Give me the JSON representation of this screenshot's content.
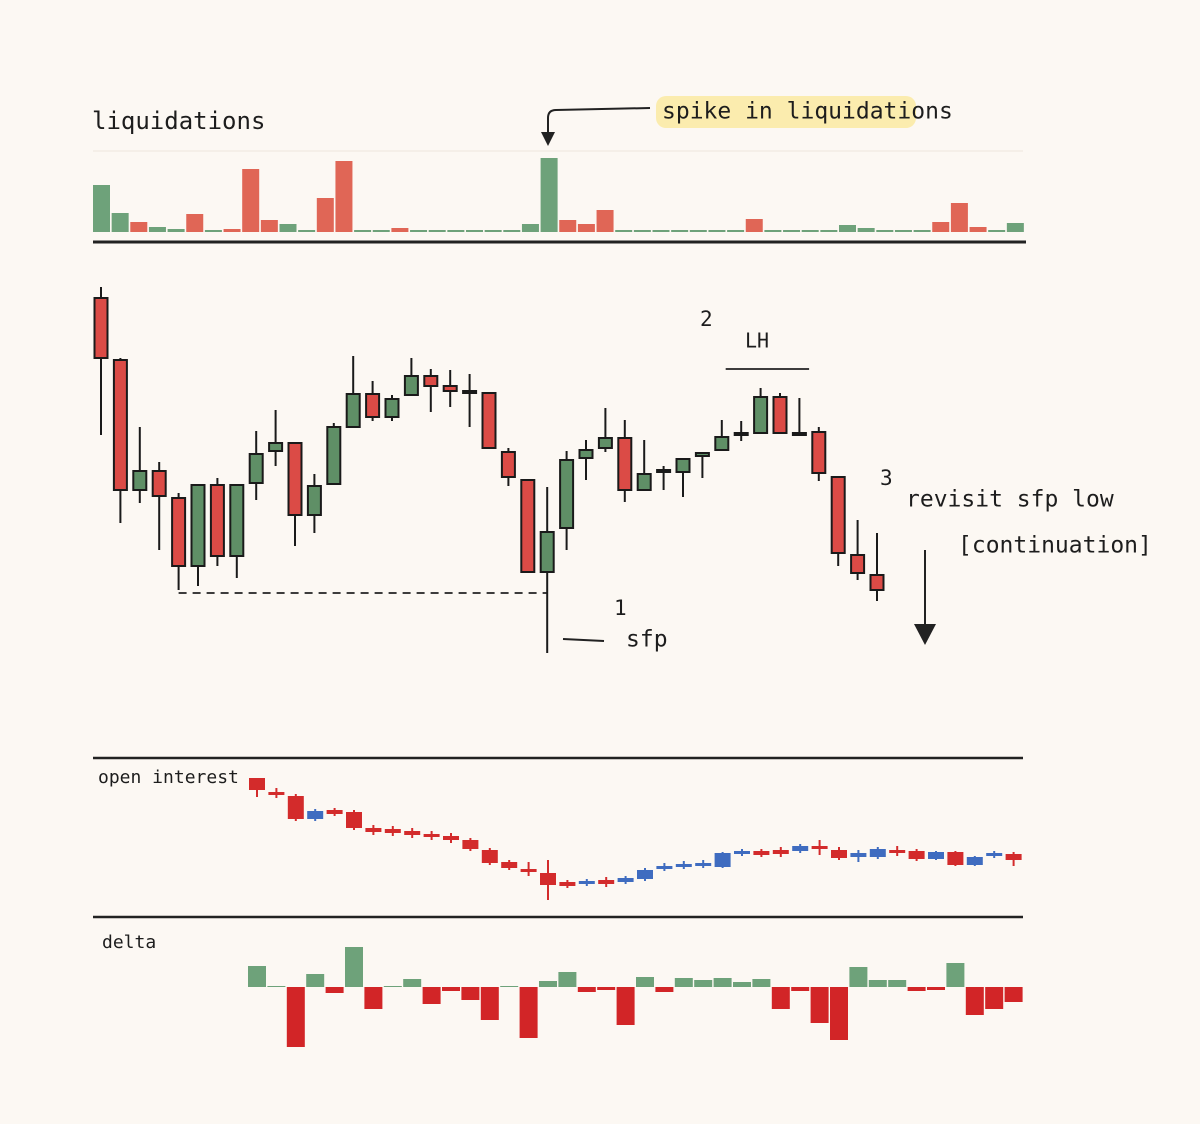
{
  "chart_data": [
    {
      "type": "bar",
      "title": "liquidations",
      "annotation": "spike in liquidations",
      "values": [
        47,
        19,
        10,
        5,
        3,
        18,
        2,
        3,
        63,
        12,
        8,
        2,
        34,
        71,
        2,
        2,
        4,
        2,
        2,
        2,
        2,
        2,
        2,
        8,
        74,
        12,
        8,
        22,
        2,
        2,
        2,
        2,
        2,
        2,
        2,
        13,
        2,
        2,
        2,
        2,
        7,
        4,
        2,
        2,
        2,
        10,
        29,
        5,
        2,
        9
      ],
      "colors": [
        "#6ea27a",
        "#6ea27a",
        "#e06656",
        "#6ea27a",
        "#6ea27a",
        "#e06656",
        "#6ea27a",
        "#e06656",
        "#e06656",
        "#e06656",
        "#6ea27a",
        "#6ea27a",
        "#e06656",
        "#e06656",
        "#6ea27a",
        "#6ea27a",
        "#e06656",
        "#6ea27a",
        "#6ea27a",
        "#6ea27a",
        "#6ea27a",
        "#6ea27a",
        "#6ea27a",
        "#6ea27a",
        "#6ea27a",
        "#e06656",
        "#e06656",
        "#e06656",
        "#6ea27a",
        "#6ea27a",
        "#6ea27a",
        "#6ea27a",
        "#6ea27a",
        "#6ea27a",
        "#6ea27a",
        "#e06656",
        "#6ea27a",
        "#6ea27a",
        "#6ea27a",
        "#6ea27a",
        "#6ea27a",
        "#6ea27a",
        "#6ea27a",
        "#6ea27a",
        "#6ea27a",
        "#e06656",
        "#e06656",
        "#e06656",
        "#6ea27a",
        "#6ea27a"
      ],
      "ylim": [
        0,
        80
      ]
    },
    {
      "type": "candlestick",
      "open": [
        402,
        340,
        210,
        229,
        202,
        134,
        215,
        144,
        217,
        249,
        257,
        185,
        216,
        273,
        306,
        283,
        305,
        324,
        314,
        309,
        307,
        248,
        220,
        128,
        172,
        242,
        252,
        262,
        210,
        229,
        228,
        244,
        250,
        266,
        267,
        303,
        267,
        268,
        223,
        145,
        125
      ],
      "high": [
        413,
        342,
        273,
        238,
        207,
        215,
        222,
        215,
        269,
        290,
        257,
        226,
        277,
        344,
        319,
        305,
        342,
        331,
        330,
        326,
        307,
        252,
        220,
        213,
        249,
        260,
        292,
        280,
        260,
        234,
        241,
        247,
        280,
        279,
        312,
        307,
        302,
        273,
        223,
        180,
        167
      ],
      "low": [
        265,
        177,
        197,
        150,
        110,
        114,
        134,
        122,
        200,
        234,
        154,
        167,
        216,
        273,
        279,
        279,
        305,
        288,
        293,
        273,
        252,
        214,
        128,
        47,
        150,
        220,
        248,
        198,
        210,
        210,
        203,
        222,
        250,
        259,
        267,
        267,
        266,
        219,
        134,
        120,
        99
      ],
      "close": [
        342,
        210,
        229,
        204,
        134,
        215,
        144,
        215,
        246,
        257,
        185,
        214,
        273,
        306,
        283,
        301,
        324,
        314,
        309,
        308,
        252,
        223,
        128,
        168,
        240,
        250,
        262,
        210,
        226,
        230,
        241,
        247,
        263,
        267,
        303,
        267,
        266,
        227,
        147,
        127,
        110
      ],
      "up_color": "#5f8f66",
      "down_color": "#db4b46",
      "outline": true,
      "levels": [
        107,
        331
      ],
      "annotations": [
        "1",
        "sfp",
        "2",
        "LH",
        "3",
        "revisit sfp low",
        "[continuation]"
      ],
      "ylim": [
        40,
        420
      ]
    },
    {
      "type": "candlestick",
      "title": "open interest",
      "open": [
        142,
        128,
        124,
        101,
        110,
        108,
        92,
        91,
        89,
        86,
        84,
        80,
        70,
        58,
        51,
        47,
        38,
        36,
        40,
        38,
        41,
        51,
        53,
        54,
        53,
        66,
        69,
        70,
        69,
        74,
        70,
        63,
        63,
        70,
        69,
        61,
        68,
        55,
        64,
        66
      ],
      "high": [
        142,
        132,
        126,
        111,
        112,
        110,
        95,
        94,
        92,
        89,
        87,
        82,
        72,
        60,
        58,
        60,
        40,
        41,
        43,
        44,
        52,
        57,
        59,
        60,
        68,
        71,
        71,
        73,
        76,
        80,
        73,
        70,
        73,
        74,
        71,
        69,
        69,
        64,
        69,
        68
      ],
      "low": [
        123,
        122,
        99,
        99,
        104,
        90,
        85,
        84,
        82,
        80,
        77,
        69,
        55,
        50,
        44,
        20,
        32,
        34,
        33,
        36,
        39,
        49,
        51,
        52,
        52,
        64,
        63,
        63,
        67,
        65,
        60,
        58,
        61,
        64,
        59,
        60,
        54,
        54,
        62,
        54
      ],
      "close": [
        130,
        125,
        101,
        109,
        106,
        92,
        88,
        87,
        85,
        83,
        80,
        71,
        57,
        52,
        48,
        35,
        34,
        39,
        36,
        42,
        50,
        54,
        56,
        57,
        67,
        69,
        65,
        66,
        74,
        71,
        62,
        67,
        71,
        67,
        61,
        68,
        55,
        63,
        67,
        60
      ],
      "up_color": "#3f6cc0",
      "down_color": "#d32b2b",
      "outline": false,
      "ylim": [
        10,
        150
      ]
    },
    {
      "type": "bar",
      "title": "delta",
      "values": [
        21,
        1,
        -60,
        13,
        -6,
        40,
        -22,
        1,
        8,
        -17,
        -4,
        -13,
        -33,
        1,
        -51,
        6,
        15,
        -5,
        -3,
        -38,
        10,
        -5,
        9,
        7,
        9,
        5,
        8,
        -22,
        -4,
        -36,
        -53,
        20,
        7,
        7,
        -4,
        -3,
        24,
        -28,
        -22,
        -15
      ],
      "positive_color": "#6ea27a",
      "negative_color": "#d22527",
      "ylim": [
        -70,
        50
      ]
    }
  ]
}
